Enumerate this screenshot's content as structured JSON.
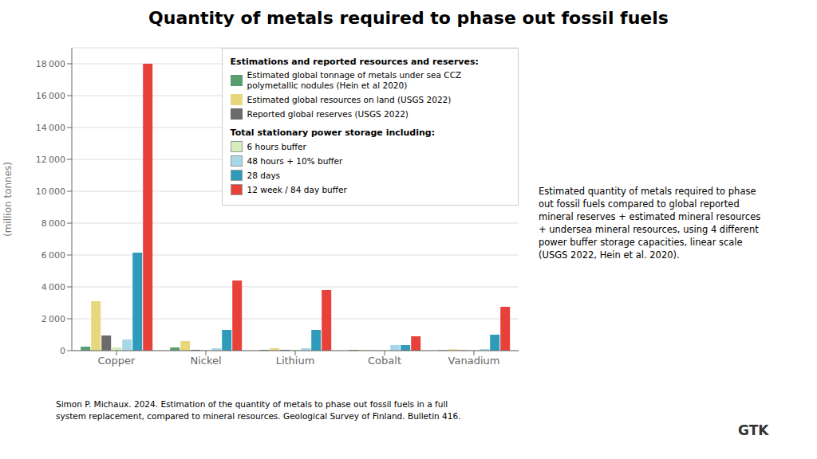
{
  "chart_data": {
    "type": "bar",
    "title": "Quantity of metals required to phase out fossil fuels",
    "ylabel": "(million tonnes)",
    "categories": [
      "Copper",
      "Nickel",
      "Lithium",
      "Cobalt",
      "Vanadium"
    ],
    "series": [
      {
        "name": "Estimated global tonnage of metals under sea CCZ\npolymetallic nodules (Hein et al 2020)",
        "color": "#5a9e70",
        "values": [
          250,
          200,
          50,
          45,
          30
        ]
      },
      {
        "name": "Estimated global resources on land (USGS 2022)",
        "color": "#e8d87c",
        "values": [
          3100,
          600,
          150,
          50,
          80
        ]
      },
      {
        "name": "Reported global reserves (USGS 2022)",
        "color": "#6b6b6b",
        "values": [
          950,
          50,
          50,
          10,
          20
        ]
      },
      {
        "name": "6 hours buffer",
        "color": "#d4edbc",
        "values": [
          200,
          50,
          50,
          10,
          20
        ]
      },
      {
        "name": "48 hours + 10% buffer",
        "color": "#a8d8e8",
        "values": [
          700,
          150,
          150,
          350,
          100
        ]
      },
      {
        "name": "28 days",
        "color": "#2e9bba",
        "values": [
          6150,
          1300,
          1300,
          350,
          1000
        ]
      },
      {
        "name": "12 week / 84 day buffer",
        "color": "#e8413a",
        "values": [
          18000,
          4400,
          3800,
          900,
          2750
        ]
      }
    ],
    "ylim": [
      0,
      19000
    ],
    "yticks": [
      0,
      {
        "value": 2000,
        "label": "2 000"
      },
      {
        "value": 4000,
        "label": "4 000"
      },
      {
        "value": 6000,
        "label": "6 000"
      },
      {
        "value": 8000,
        "label": "8 000"
      },
      {
        "value": 10000,
        "label": "10 000"
      },
      {
        "value": 12000,
        "label": "12 000"
      },
      {
        "value": 14000,
        "label": "14 000"
      },
      {
        "value": 16000,
        "label": "16 000"
      },
      {
        "value": 18000,
        "label": "18 000"
      }
    ],
    "grid": true,
    "legend": "upper right",
    "annotations": [
      "Estimations and reported resources and reserves:",
      "Total stationary power storage including:",
      "Estimated quantity of metals required to phase\nout fossil fuels compared to global reported\nmineral reserves + estimated mineral resources\n+ undersea mineral resources, using 4 different\npower buffer storage capacities, linear scale\n(USGS 2022, Hein et al. 2020).",
      "Simon P. Michaux. 2024. Estimation of the quantity of metals to phase out fossil fuels in a full\nsystem replacement, compared to mineral resources. Geological Survey of Finland. Bulletin 416.",
      "GTK"
    ]
  }
}
